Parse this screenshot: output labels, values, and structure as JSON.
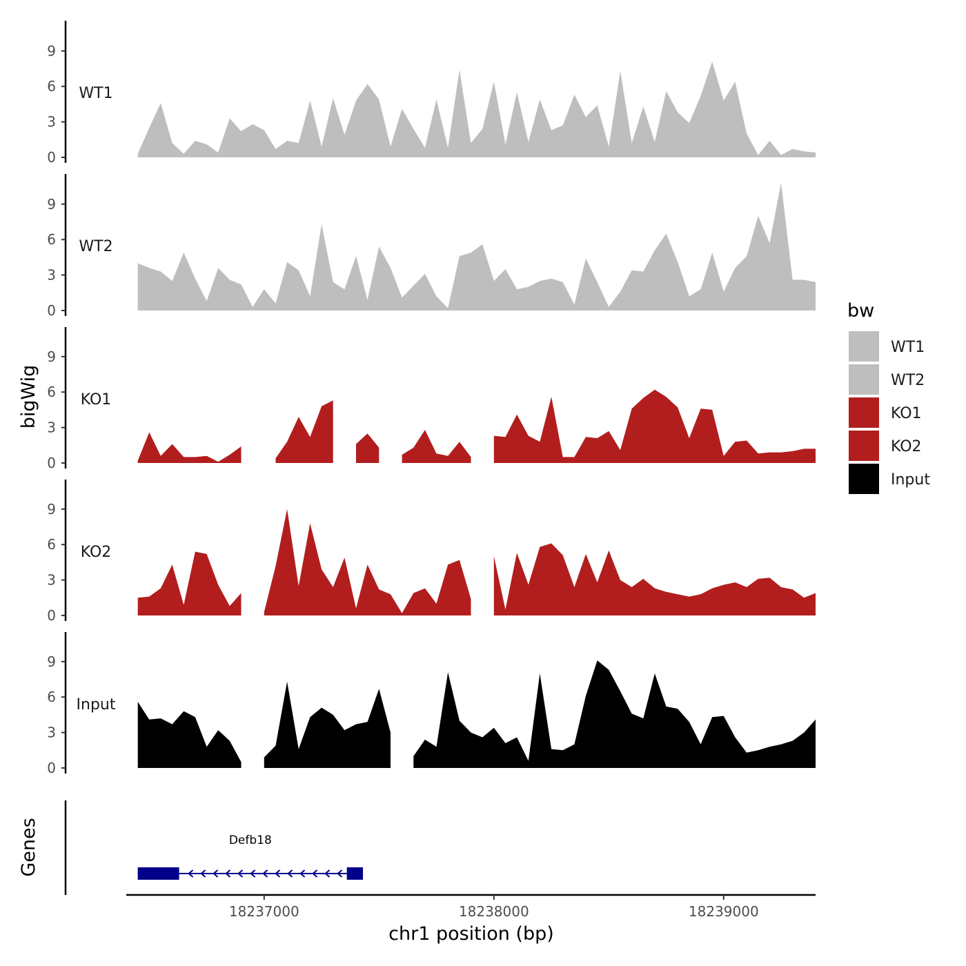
{
  "chart_data": {
    "type": "area",
    "xlabel": "chr1 position (bp)",
    "ylabel": "bigWig",
    "genes_label": "Genes",
    "xlim": [
      18236400,
      18239400
    ],
    "x_ticks": [
      18237000,
      18238000,
      18239000
    ],
    "x_tick_labels": [
      "18237000",
      "18238000",
      "18239000"
    ],
    "ylim": [
      0,
      11.5
    ],
    "y_ticks": [
      0,
      3,
      6,
      9
    ],
    "y_tick_labels": [
      "0",
      "3",
      "6",
      "9"
    ],
    "legend_title": "bw",
    "colors": {
      "wt": "#bebebe",
      "ko": "#b21e1e",
      "input": "#000000",
      "gene": "#00008b",
      "axis": "#000000"
    },
    "x": [
      18236450,
      18236500,
      18236550,
      18236600,
      18236650,
      18236700,
      18236750,
      18236800,
      18236850,
      18236900,
      18236950,
      18237000,
      18237050,
      18237100,
      18237150,
      18237200,
      18237250,
      18237300,
      18237350,
      18237400,
      18237450,
      18237500,
      18237550,
      18237600,
      18237650,
      18237700,
      18237750,
      18237800,
      18237850,
      18237900,
      18237950,
      18238000,
      18238050,
      18238100,
      18238150,
      18238200,
      18238250,
      18238300,
      18238350,
      18238400,
      18238450,
      18238500,
      18238550,
      18238600,
      18238650,
      18238700,
      18238750,
      18238800,
      18238850,
      18238900,
      18238950,
      18239000,
      18239050,
      18239100,
      18239150,
      18239200,
      18239250,
      18239300,
      18239350,
      18239400
    ],
    "series": [
      {
        "name": "WT1",
        "color": "#bebebe",
        "values": [
          0.3,
          2.5,
          4.6,
          1.2,
          0.3,
          1.4,
          1.1,
          0.4,
          3.3,
          2.2,
          2.8,
          2.3,
          0.7,
          1.4,
          1.2,
          4.8,
          0.9,
          5.0,
          1.9,
          4.8,
          6.2,
          4.9,
          0.9,
          4.1,
          2.4,
          0.8,
          4.9,
          0.8,
          7.4,
          1.2,
          2.4,
          6.4,
          1.1,
          5.5,
          1.3,
          4.9,
          2.3,
          2.7,
          5.3,
          3.4,
          4.4,
          0.9,
          7.3,
          1.2,
          4.3,
          1.3,
          5.6,
          3.8,
          2.9,
          5.2,
          8.1,
          4.8,
          6.4,
          2.0,
          0.2,
          1.4,
          0.2,
          0.7,
          0.5,
          0.4
        ]
      },
      {
        "name": "WT2",
        "color": "#bebebe",
        "values": [
          4.0,
          3.6,
          3.3,
          2.5,
          4.9,
          2.7,
          0.8,
          3.6,
          2.6,
          2.2,
          0.3,
          1.8,
          0.6,
          4.1,
          3.4,
          1.2,
          7.3,
          2.4,
          1.8,
          4.6,
          0.9,
          5.4,
          3.6,
          1.1,
          2.1,
          3.1,
          1.2,
          0.2,
          4.6,
          4.9,
          5.6,
          2.5,
          3.5,
          1.8,
          2.0,
          2.5,
          2.7,
          2.4,
          0.5,
          4.4,
          2.4,
          0.3,
          1.6,
          3.4,
          3.3,
          5.1,
          6.5,
          4.1,
          1.2,
          1.8,
          4.9,
          1.6,
          3.6,
          4.6,
          8.0,
          5.7,
          10.8,
          2.6,
          2.6,
          2.4
        ]
      },
      {
        "name": "KO1",
        "color": "#b21e1e",
        "values": [
          0.2,
          2.6,
          0.6,
          1.6,
          0.5,
          0.5,
          0.6,
          0.1,
          0.7,
          1.4,
          null,
          null,
          0.4,
          1.8,
          3.9,
          2.2,
          4.8,
          5.3,
          null,
          1.6,
          2.5,
          1.3,
          null,
          0.7,
          1.3,
          2.8,
          0.8,
          0.6,
          1.8,
          0.5,
          null,
          2.3,
          2.2,
          4.1,
          2.3,
          1.8,
          5.6,
          0.5,
          0.5,
          2.2,
          2.1,
          2.7,
          1.1,
          4.6,
          5.5,
          6.2,
          5.6,
          4.7,
          2.1,
          4.6,
          4.5,
          0.6,
          1.8,
          1.9,
          0.8,
          0.9,
          0.9,
          1.0,
          1.2,
          1.2
        ]
      },
      {
        "name": "KO2",
        "color": "#b21e1e",
        "values": [
          1.5,
          1.6,
          2.3,
          4.3,
          0.9,
          5.4,
          5.2,
          2.6,
          0.8,
          1.9,
          null,
          0.3,
          4.2,
          9.0,
          2.5,
          7.8,
          3.9,
          2.4,
          4.9,
          0.6,
          4.3,
          2.2,
          1.8,
          0.2,
          1.9,
          2.3,
          1.0,
          4.3,
          4.7,
          1.4,
          null,
          5.0,
          0.5,
          5.3,
          2.6,
          5.8,
          6.1,
          5.1,
          2.4,
          5.2,
          2.8,
          5.5,
          3.0,
          2.4,
          3.1,
          2.3,
          2.0,
          1.8,
          1.6,
          1.8,
          2.3,
          2.6,
          2.8,
          2.4,
          3.1,
          3.2,
          2.4,
          2.2,
          1.5,
          1.9
        ]
      },
      {
        "name": "Input",
        "color": "#000000",
        "values": [
          5.6,
          4.1,
          4.2,
          3.7,
          4.8,
          4.3,
          1.8,
          3.2,
          2.3,
          0.5,
          null,
          0.9,
          1.9,
          7.3,
          1.6,
          4.3,
          5.1,
          4.5,
          3.2,
          3.7,
          3.9,
          6.7,
          3.0,
          null,
          1.0,
          2.4,
          1.8,
          8.1,
          4.0,
          3.0,
          2.6,
          3.4,
          2.1,
          2.6,
          0.6,
          8.0,
          1.6,
          1.5,
          2.0,
          6.1,
          9.1,
          8.3,
          6.5,
          4.6,
          4.2,
          8.0,
          5.2,
          5.0,
          3.9,
          2.0,
          4.3,
          4.4,
          2.6,
          1.3,
          1.5,
          1.8,
          2.0,
          2.3,
          3.0,
          4.1
        ]
      }
    ],
    "genes": [
      {
        "name": "Defb18",
        "start": 18236450,
        "end": 18237430,
        "strand": "-",
        "exons": [
          [
            18236450,
            18236630
          ],
          [
            18237360,
            18237430
          ]
        ]
      }
    ]
  }
}
